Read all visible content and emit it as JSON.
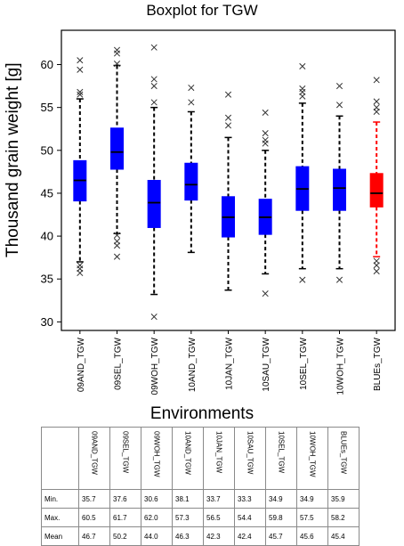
{
  "chart_data": {
    "type": "boxplot",
    "title": "Boxplot for TGW",
    "xlabel": "Environments",
    "ylabel": "Thousand grain weight [g]",
    "ylim": [
      29,
      64
    ],
    "yticks": [
      30,
      35,
      40,
      45,
      50,
      55,
      60
    ],
    "categories": [
      "09AND_TGW",
      "09SEL_TGW",
      "09WOH_TGW",
      "10AND_TGW",
      "10JAN_TGW",
      "10SAU_TGW",
      "10SEL_TGW",
      "10WOH_TGW",
      "BLUEs_TGW"
    ],
    "boxes": [
      {
        "min": 37.0,
        "q1": 44.1,
        "median": 46.5,
        "q3": 48.8,
        "max": 56.0,
        "color": "#0000ff",
        "outliers": [
          35.7,
          36.2,
          36.6,
          56.5,
          56.8,
          59.4,
          60.5
        ]
      },
      {
        "min": 40.3,
        "q1": 47.8,
        "median": 49.8,
        "q3": 52.6,
        "max": 59.9,
        "color": "#0000ff",
        "outliers": [
          37.6,
          38.9,
          39.4,
          40.1,
          60.1,
          61.3,
          61.7
        ]
      },
      {
        "min": 33.2,
        "q1": 41.0,
        "median": 43.9,
        "q3": 46.5,
        "max": 55.0,
        "color": "#0000ff",
        "outliers": [
          30.6,
          55.6,
          57.5,
          58.3,
          62.0
        ]
      },
      {
        "min": 38.1,
        "q1": 44.2,
        "median": 46.0,
        "q3": 48.5,
        "max": 54.5,
        "color": "#0000ff",
        "outliers": [
          55.6,
          57.3
        ]
      },
      {
        "min": 33.7,
        "q1": 39.9,
        "median": 42.2,
        "q3": 44.6,
        "max": 51.5,
        "color": "#0000ff",
        "outliers": [
          52.9,
          53.8,
          56.5
        ]
      },
      {
        "min": 35.6,
        "q1": 40.2,
        "median": 42.2,
        "q3": 44.3,
        "max": 50.0,
        "color": "#0000ff",
        "outliers": [
          33.3,
          50.8,
          51.2,
          52.0,
          54.4
        ]
      },
      {
        "min": 36.2,
        "q1": 43.0,
        "median": 45.5,
        "q3": 48.1,
        "max": 55.5,
        "color": "#0000ff",
        "outliers": [
          34.9,
          56.3,
          56.8,
          57.2,
          59.8
        ]
      },
      {
        "min": 36.2,
        "q1": 43.0,
        "median": 45.6,
        "q3": 47.8,
        "max": 54.0,
        "color": "#0000ff",
        "outliers": [
          34.9,
          55.3,
          57.5
        ]
      },
      {
        "min": 37.6,
        "q1": 43.4,
        "median": 45.0,
        "q3": 47.3,
        "max": 53.3,
        "color": "#ff0000",
        "outliers": [
          35.9,
          36.6,
          37.1,
          54.5,
          55.0,
          55.7,
          58.2
        ]
      }
    ]
  },
  "table": {
    "headers": [
      "09AND_TGW",
      "09SEL_TGW",
      "09WOH_TGW",
      "10AND_TGW",
      "10JAN_TGW",
      "10SAU_TGW",
      "10SEL_TGW",
      "10WOH_TGW",
      "BLUEs_TGW"
    ],
    "rows": [
      {
        "label": "Min.",
        "values": [
          "35.7",
          "37.6",
          "30.6",
          "38.1",
          "33.7",
          "33.3",
          "34.9",
          "34.9",
          "35.9"
        ]
      },
      {
        "label": "Max.",
        "values": [
          "60.5",
          "61.7",
          "62.0",
          "57.3",
          "56.5",
          "54.4",
          "59.8",
          "57.5",
          "58.2"
        ]
      },
      {
        "label": "Mean",
        "values": [
          "46.7",
          "50.2",
          "44.0",
          "46.3",
          "42.3",
          "42.4",
          "45.7",
          "45.6",
          "45.4"
        ]
      }
    ]
  }
}
